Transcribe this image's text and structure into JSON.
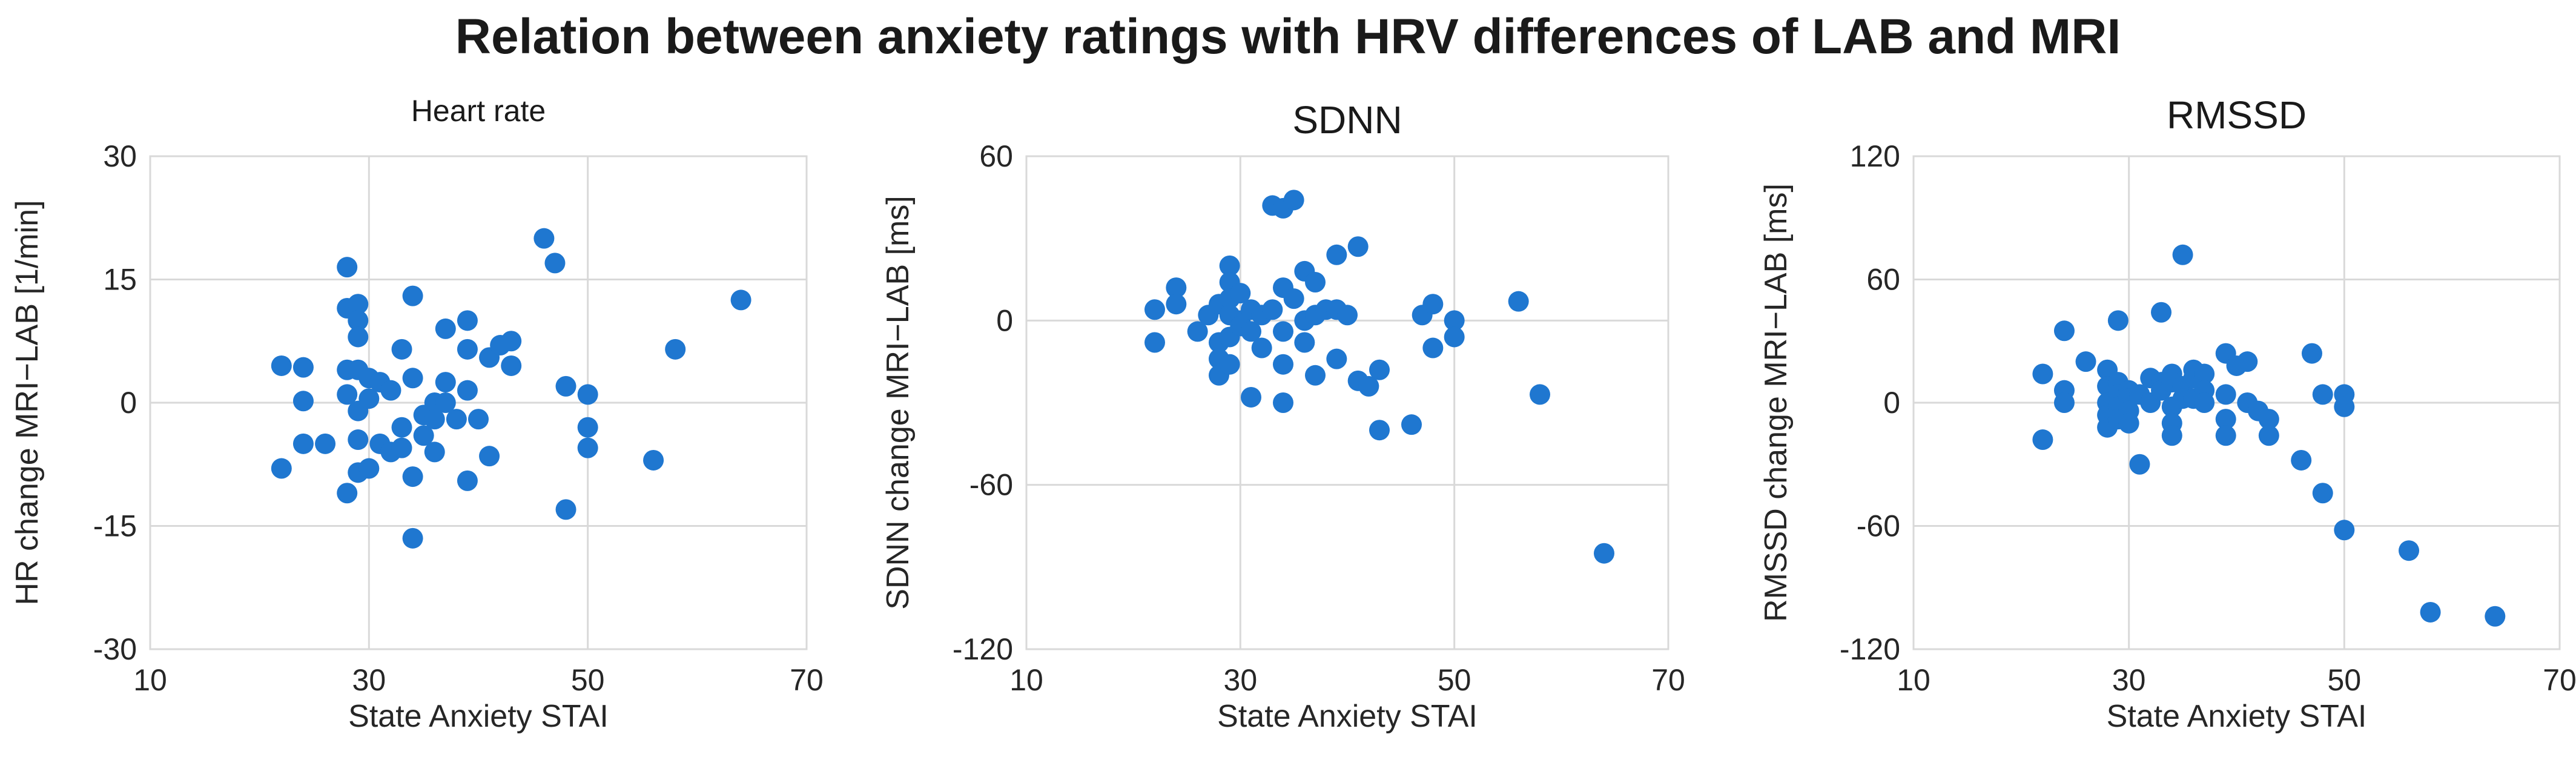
{
  "page": {
    "title": "Relation between anxiety ratings with HRV differences of LAB and MRI"
  },
  "style": {
    "marker_color": "#1f77d0",
    "grid_color": "#d9d9d9"
  },
  "chart_data": [
    {
      "type": "scatter",
      "title": "Heart rate",
      "xlabel": "State Anxiety STAI",
      "ylabel": "HR change MRI−LAB [1/min]",
      "xlim": [
        10,
        70
      ],
      "ylim": [
        -30,
        30
      ],
      "xticks": [
        10,
        30,
        50,
        70
      ],
      "yticks": [
        -30,
        -15,
        0,
        15,
        30
      ],
      "points": [
        [
          22,
          4.5
        ],
        [
          22,
          -8
        ],
        [
          24,
          4.3
        ],
        [
          24,
          0.2
        ],
        [
          24,
          -5
        ],
        [
          26,
          -5
        ],
        [
          28,
          16.5
        ],
        [
          28,
          11.5
        ],
        [
          28,
          4
        ],
        [
          28,
          1
        ],
        [
          28,
          -11
        ],
        [
          29,
          12
        ],
        [
          29,
          10
        ],
        [
          29,
          8
        ],
        [
          29,
          4
        ],
        [
          29,
          -1
        ],
        [
          29,
          -4.5
        ],
        [
          29,
          -8.5
        ],
        [
          30,
          3
        ],
        [
          30,
          0.5
        ],
        [
          30,
          -8
        ],
        [
          31,
          2.5
        ],
        [
          31,
          -5
        ],
        [
          32,
          1.5
        ],
        [
          32,
          -6
        ],
        [
          33,
          6.5
        ],
        [
          33,
          -3
        ],
        [
          33,
          -5.5
        ],
        [
          34,
          13
        ],
        [
          34,
          3
        ],
        [
          34,
          -9
        ],
        [
          34,
          -16.5
        ],
        [
          35,
          -1.5
        ],
        [
          35,
          -4
        ],
        [
          36,
          0
        ],
        [
          36,
          -2
        ],
        [
          36,
          -6
        ],
        [
          37,
          9
        ],
        [
          37,
          2.5
        ],
        [
          37,
          0
        ],
        [
          38,
          -2
        ],
        [
          39,
          10
        ],
        [
          39,
          6.5
        ],
        [
          39,
          1.5
        ],
        [
          39,
          -9.5
        ],
        [
          40,
          -2
        ],
        [
          41,
          5.5
        ],
        [
          41,
          -6.5
        ],
        [
          42,
          7
        ],
        [
          43,
          7.5
        ],
        [
          43,
          4.5
        ],
        [
          46,
          20
        ],
        [
          47,
          17
        ],
        [
          48,
          2
        ],
        [
          48,
          -13
        ],
        [
          50,
          1
        ],
        [
          50,
          -3
        ],
        [
          50,
          -5.5
        ],
        [
          56,
          -7
        ],
        [
          58,
          6.5
        ],
        [
          64,
          12.5
        ]
      ]
    },
    {
      "type": "scatter",
      "title": "SDNN",
      "xlabel": "State Anxiety STAI",
      "ylabel": "SDNN change MRI−LAB [ms]",
      "xlim": [
        10,
        70
      ],
      "ylim": [
        -120,
        60
      ],
      "xticks": [
        10,
        30,
        50,
        70
      ],
      "yticks": [
        -120,
        -60,
        0,
        60
      ],
      "points": [
        [
          22,
          4
        ],
        [
          22,
          -8
        ],
        [
          24,
          12
        ],
        [
          24,
          6
        ],
        [
          26,
          -4
        ],
        [
          27,
          2
        ],
        [
          28,
          6
        ],
        [
          28,
          -8
        ],
        [
          28,
          -14
        ],
        [
          28,
          -20
        ],
        [
          29,
          20
        ],
        [
          29,
          14
        ],
        [
          29,
          8
        ],
        [
          29,
          2
        ],
        [
          29,
          -6
        ],
        [
          29,
          -16
        ],
        [
          30,
          10
        ],
        [
          30,
          0
        ],
        [
          30,
          -2
        ],
        [
          31,
          4
        ],
        [
          31,
          -4
        ],
        [
          31,
          -28
        ],
        [
          32,
          2
        ],
        [
          32,
          -10
        ],
        [
          33,
          42
        ],
        [
          33,
          4
        ],
        [
          34,
          41
        ],
        [
          34,
          12
        ],
        [
          34,
          -4
        ],
        [
          34,
          -16
        ],
        [
          34,
          -30
        ],
        [
          35,
          44
        ],
        [
          35,
          8
        ],
        [
          36,
          18
        ],
        [
          36,
          0
        ],
        [
          36,
          -8
        ],
        [
          37,
          14
        ],
        [
          37,
          2
        ],
        [
          37,
          -20
        ],
        [
          38,
          4
        ],
        [
          39,
          24
        ],
        [
          39,
          4
        ],
        [
          39,
          -14
        ],
        [
          40,
          2
        ],
        [
          41,
          27
        ],
        [
          41,
          -22
        ],
        [
          42,
          -24
        ],
        [
          43,
          -18
        ],
        [
          43,
          -40
        ],
        [
          46,
          -38
        ],
        [
          47,
          2
        ],
        [
          48,
          6
        ],
        [
          48,
          -10
        ],
        [
          50,
          0
        ],
        [
          50,
          -6
        ],
        [
          56,
          7
        ],
        [
          58,
          -27
        ],
        [
          64,
          -85
        ]
      ]
    },
    {
      "type": "scatter",
      "title": "RMSSD",
      "xlabel": "State Anxiety STAI",
      "ylabel": "RMSSD change MRI−LAB [ms]",
      "xlim": [
        10,
        70
      ],
      "ylim": [
        -120,
        120
      ],
      "xticks": [
        10,
        30,
        50,
        70
      ],
      "yticks": [
        -120,
        -60,
        0,
        60,
        120
      ],
      "points": [
        [
          22,
          14
        ],
        [
          22,
          -18
        ],
        [
          24,
          35
        ],
        [
          24,
          6
        ],
        [
          24,
          0
        ],
        [
          26,
          20
        ],
        [
          28,
          16
        ],
        [
          28,
          8
        ],
        [
          28,
          0
        ],
        [
          28,
          -6
        ],
        [
          28,
          -12
        ],
        [
          29,
          40
        ],
        [
          29,
          10
        ],
        [
          29,
          4
        ],
        [
          29,
          -2
        ],
        [
          29,
          -8
        ],
        [
          30,
          6
        ],
        [
          30,
          2
        ],
        [
          30,
          -4
        ],
        [
          30,
          -10
        ],
        [
          31,
          4
        ],
        [
          31,
          -30
        ],
        [
          32,
          12
        ],
        [
          32,
          0
        ],
        [
          33,
          44
        ],
        [
          33,
          10
        ],
        [
          33,
          6
        ],
        [
          34,
          14
        ],
        [
          34,
          10
        ],
        [
          34,
          -2
        ],
        [
          34,
          -10
        ],
        [
          34,
          -16
        ],
        [
          35,
          72
        ],
        [
          35,
          8
        ],
        [
          35,
          2
        ],
        [
          36,
          16
        ],
        [
          36,
          12
        ],
        [
          36,
          2
        ],
        [
          37,
          14
        ],
        [
          37,
          6
        ],
        [
          37,
          0
        ],
        [
          39,
          24
        ],
        [
          39,
          4
        ],
        [
          39,
          -8
        ],
        [
          39,
          -16
        ],
        [
          40,
          18
        ],
        [
          41,
          20
        ],
        [
          41,
          0
        ],
        [
          42,
          -4
        ],
        [
          43,
          -8
        ],
        [
          43,
          -16
        ],
        [
          46,
          -28
        ],
        [
          47,
          24
        ],
        [
          48,
          4
        ],
        [
          48,
          -44
        ],
        [
          50,
          4
        ],
        [
          50,
          -2
        ],
        [
          50,
          -62
        ],
        [
          56,
          -72
        ],
        [
          58,
          -102
        ],
        [
          64,
          -104
        ]
      ]
    }
  ]
}
